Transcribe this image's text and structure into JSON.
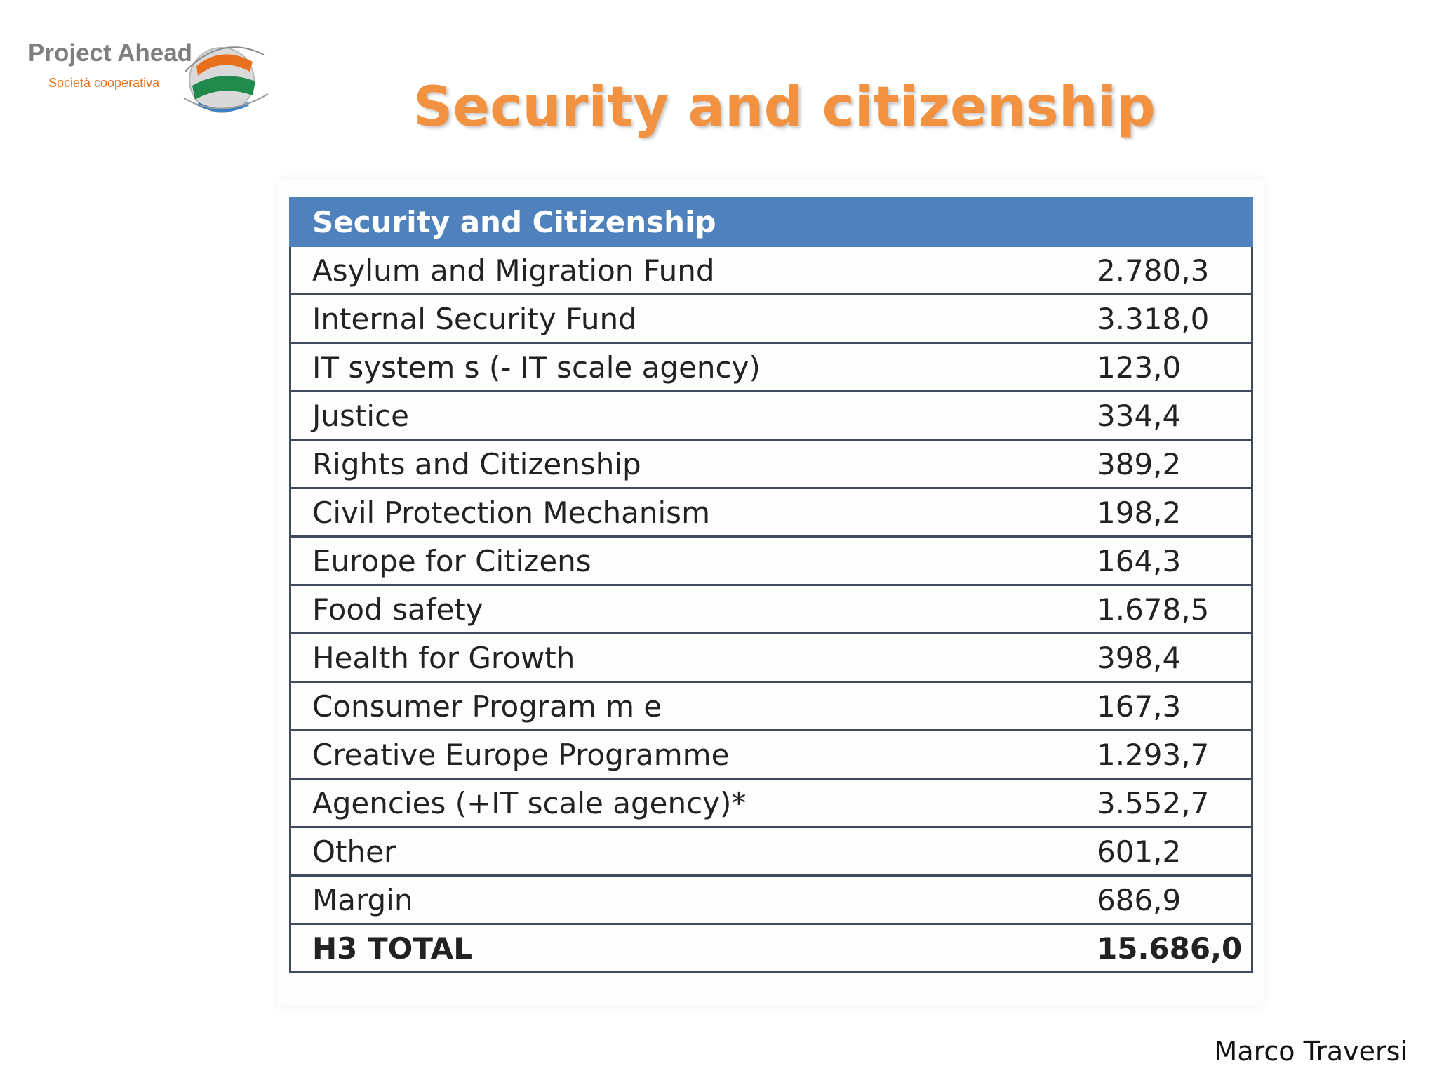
{
  "logo": {
    "name": "Project Ahead",
    "subtitle": "Società cooperativa",
    "colors": {
      "orange": "#e8701c",
      "green": "#1f8a4c",
      "blue": "#3a7fc4",
      "gray": "#7f7f7f"
    }
  },
  "slide": {
    "title": "Security and citizenship",
    "title_color": "#f2913f",
    "author": "Marco Traversi"
  },
  "table": {
    "header": "Security and Citizenship",
    "header_color": "#4f81bd",
    "rows": [
      {
        "label": "Asylum and Migration  Fund",
        "value": "2.780,3"
      },
      {
        "label": "Internal Security Fund",
        "value": "3.318,0"
      },
      {
        "label": "IT system s (- IT scale agency)",
        "value": "123,0"
      },
      {
        "label": "Justice",
        "value": "334,4"
      },
      {
        "label": "Rights and Citizenship",
        "value": "389,2"
      },
      {
        "label": "Civil Protection Mechanism",
        "value": "198,2"
      },
      {
        "label": "Europe for Citizens",
        "value": "164,3"
      },
      {
        "label": "Food safety",
        "value": "1.678,5"
      },
      {
        "label": "Health for Growth",
        "value": "398,4"
      },
      {
        "label": "Consumer Program m e",
        "value": "167,3"
      },
      {
        "label": "Creative Europe Programme",
        "value": "1.293,7"
      },
      {
        "label": "Agencies  (+IT scale agency)*",
        "value": "3.552,7"
      },
      {
        "label": "Other",
        "value": "601,2"
      },
      {
        "label": "Margin",
        "value": "686,9"
      }
    ],
    "total": {
      "label": "H3 TOTAL",
      "value": "15.686,0"
    }
  }
}
